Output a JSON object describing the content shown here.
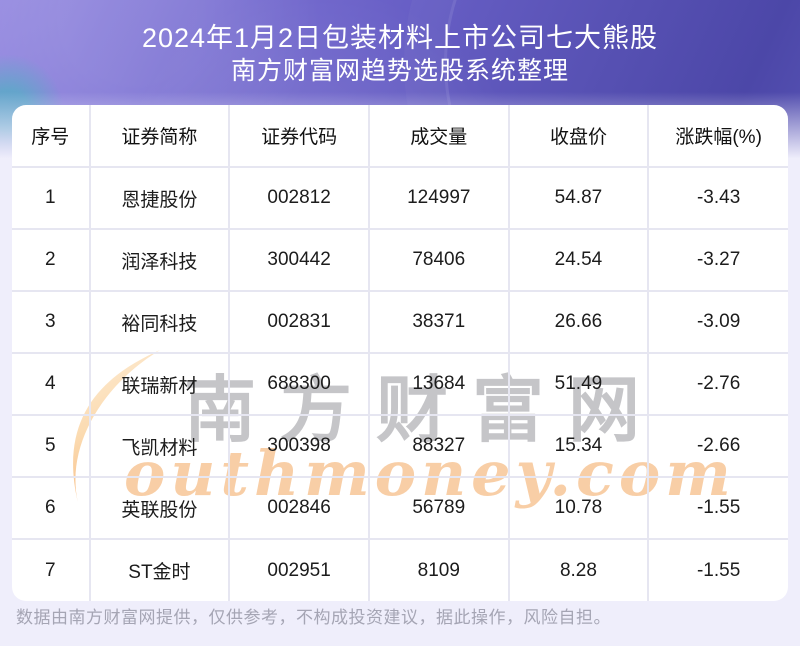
{
  "banner": {
    "title_line1": "2024年1月2日包装材料上市公司七大熊股",
    "title_line2": "南方财富网趋势选股系统整理"
  },
  "chart_data": {
    "type": "table",
    "title": "2024年1月2日包装材料上市公司七大熊股",
    "subtitle": "南方财富网趋势选股系统整理",
    "columns": [
      "序号",
      "证券简称",
      "证券代码",
      "成交量",
      "收盘价",
      "涨跌幅(%)"
    ],
    "rows": [
      [
        "1",
        "恩捷股份",
        "002812",
        "124997",
        "54.87",
        "-3.43"
      ],
      [
        "2",
        "润泽科技",
        "300442",
        "78406",
        "24.54",
        "-3.27"
      ],
      [
        "3",
        "裕同科技",
        "002831",
        "38371",
        "26.66",
        "-3.09"
      ],
      [
        "4",
        "联瑞新材",
        "688300",
        "13684",
        "51.49",
        "-2.76"
      ],
      [
        "5",
        "飞凯材料",
        "300398",
        "88327",
        "15.34",
        "-2.66"
      ],
      [
        "6",
        "英联股份",
        "002846",
        "56789",
        "10.78",
        "-1.55"
      ],
      [
        "7",
        "ST金时",
        "002951",
        "8109",
        "8.28",
        "-1.55"
      ]
    ]
  },
  "watermark": {
    "cn_text": "南方财富网",
    "en_text": "outhmoney.com"
  },
  "footer": {
    "disclaimer": "数据由南方财富网提供，仅供参考，不构成投资建议，据此操作，风险自担。"
  },
  "colors": {
    "banner_purple_dark": "#4c47a8",
    "banner_purple_light": "#958ae0",
    "teal_accent": "#3ebcbc",
    "page_background": "#efeefb",
    "card_background": "#ffffff",
    "grid_line": "#e6e6f1",
    "text_primary": "#1c1c1c",
    "watermark_orange": "#f3a65d",
    "watermark_gray": "#86868d",
    "footer_text": "#a5a5b4"
  }
}
